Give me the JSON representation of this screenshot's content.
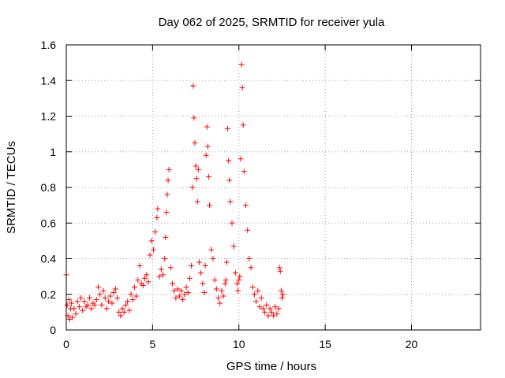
{
  "chart_data": {
    "type": "scatter",
    "title": "Day 062 of 2025, SRMTID for receiver yula",
    "xlabel": "GPS time / hours",
    "ylabel": "SRMTID / TECUs",
    "xlim": [
      0,
      24
    ],
    "ylim": [
      0,
      1.6
    ],
    "xticks": [
      0,
      5,
      10,
      15,
      20
    ],
    "xtick_labels": [
      "0",
      "5",
      "10",
      "15",
      "20"
    ],
    "yticks": [
      0,
      0.2,
      0.4,
      0.6,
      0.8,
      1.0,
      1.2,
      1.4,
      1.6
    ],
    "ytick_labels": [
      "0",
      "0.2",
      "0.4",
      "0.6",
      "0.8",
      "1",
      "1.2",
      "1.4",
      "1.6"
    ],
    "grid": true,
    "marker": "plus",
    "color": "#ff0000",
    "series": [
      {
        "name": "SRMTID",
        "x": [
          0.0,
          0.05,
          0.1,
          0.15,
          0.2,
          0.25,
          0.3,
          0.35,
          0.45,
          0.55,
          0.65,
          0.75,
          0.85,
          0.95,
          1.05,
          1.15,
          1.25,
          1.35,
          1.45,
          1.55,
          1.65,
          1.75,
          1.85,
          1.95,
          2.05,
          2.15,
          2.25,
          2.35,
          2.45,
          2.55,
          2.65,
          2.75,
          2.85,
          2.95,
          3.05,
          3.15,
          3.25,
          3.35,
          3.45,
          3.55,
          3.65,
          3.75,
          3.85,
          3.95,
          4.05,
          4.15,
          4.25,
          4.35,
          4.45,
          4.55,
          4.65,
          4.75,
          4.85,
          4.95,
          5.05,
          5.15,
          5.25,
          5.3,
          5.4,
          5.5,
          5.6,
          5.7,
          5.75,
          5.8,
          5.85,
          5.9,
          5.95,
          6.05,
          6.15,
          6.25,
          6.35,
          6.45,
          6.55,
          6.65,
          6.75,
          6.85,
          6.95,
          7.05,
          7.15,
          7.25,
          7.3,
          7.35,
          7.4,
          7.45,
          7.5,
          7.55,
          7.6,
          7.65,
          7.7,
          7.8,
          7.9,
          8.0,
          8.05,
          8.1,
          8.15,
          8.2,
          8.25,
          8.3,
          8.4,
          8.5,
          8.6,
          8.7,
          8.8,
          8.9,
          9.0,
          9.1,
          9.2,
          9.25,
          9.3,
          9.35,
          9.4,
          9.45,
          9.5,
          9.6,
          9.7,
          9.8,
          9.9,
          9.95,
          10.0,
          10.05,
          10.1,
          10.15,
          10.2,
          10.25,
          10.3,
          10.4,
          10.5,
          10.6,
          10.7,
          10.8,
          10.9,
          11.0,
          11.1,
          11.2,
          11.3,
          11.4,
          11.5,
          11.6,
          11.7,
          11.8,
          11.9,
          12.0,
          12.1,
          12.2,
          12.3,
          12.35,
          12.4,
          12.45,
          12.5,
          12.55
        ],
        "values": [
          0.31,
          0.14,
          0.08,
          0.17,
          0.06,
          0.12,
          0.15,
          0.07,
          0.12,
          0.09,
          0.16,
          0.13,
          0.18,
          0.11,
          0.16,
          0.13,
          0.14,
          0.18,
          0.12,
          0.15,
          0.14,
          0.17,
          0.24,
          0.2,
          0.14,
          0.22,
          0.18,
          0.12,
          0.16,
          0.19,
          0.15,
          0.21,
          0.23,
          0.18,
          0.1,
          0.08,
          0.12,
          0.1,
          0.14,
          0.16,
          0.11,
          0.2,
          0.17,
          0.24,
          0.19,
          0.28,
          0.36,
          0.26,
          0.25,
          0.29,
          0.31,
          0.27,
          0.42,
          0.5,
          0.45,
          0.55,
          0.63,
          0.68,
          0.3,
          0.34,
          0.31,
          0.4,
          0.52,
          0.66,
          0.76,
          0.84,
          0.9,
          0.35,
          0.26,
          0.22,
          0.18,
          0.23,
          0.19,
          0.22,
          0.17,
          0.2,
          0.24,
          0.21,
          0.29,
          0.36,
          0.8,
          1.37,
          1.19,
          1.05,
          0.92,
          0.85,
          0.72,
          0.9,
          0.38,
          0.32,
          0.26,
          0.21,
          0.36,
          0.98,
          1.14,
          1.03,
          0.86,
          0.7,
          0.45,
          0.4,
          0.28,
          0.23,
          0.18,
          0.15,
          0.22,
          0.19,
          0.26,
          0.28,
          0.38,
          1.13,
          0.95,
          0.84,
          0.72,
          0.6,
          0.47,
          0.32,
          0.26,
          0.22,
          0.28,
          0.3,
          0.96,
          1.49,
          1.36,
          1.15,
          0.89,
          0.7,
          0.56,
          0.4,
          0.35,
          0.24,
          0.2,
          0.16,
          0.22,
          0.13,
          0.18,
          0.12,
          0.1,
          0.14,
          0.08,
          0.12,
          0.1,
          0.08,
          0.13,
          0.09,
          0.12,
          0.35,
          0.33,
          0.22,
          0.18,
          0.2
        ]
      }
    ]
  }
}
